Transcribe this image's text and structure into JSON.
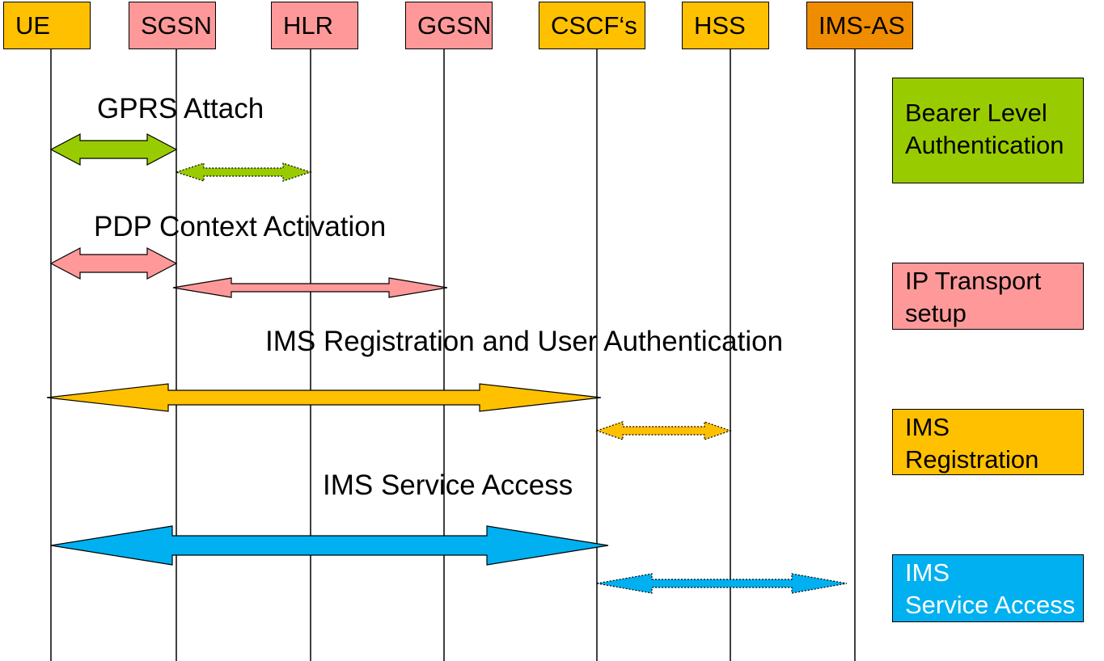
{
  "entities": [
    {
      "id": "ue",
      "name": "UE",
      "color": "#FFC000"
    },
    {
      "id": "sgsn",
      "name": "SGSN",
      "color": "#FF9999"
    },
    {
      "id": "hlr",
      "name": "HLR",
      "color": "#FF9999"
    },
    {
      "id": "ggsn",
      "name": "GGSN",
      "color": "#FF9999"
    },
    {
      "id": "cscf",
      "name": "CSCF‘s",
      "color": "#FFC000"
    },
    {
      "id": "hss",
      "name": "HSS",
      "color": "#FFC000"
    },
    {
      "id": "ims-as",
      "name": "IMS-AS",
      "color": "#F08C00"
    }
  ],
  "phases": [
    {
      "title": "GPRS Attach",
      "color": "#99CC00"
    },
    {
      "title": "PDP Context Activation",
      "color": "#FF9999"
    },
    {
      "title": "IMS Registration and User Authentication",
      "color": "#FFC000"
    },
    {
      "title": "IMS Service Access",
      "color": "#00B0F0"
    }
  ],
  "legend": [
    {
      "line1": "Bearer Level",
      "line2": "Authentication",
      "color": "#99CC00",
      "text_color": "#000000"
    },
    {
      "line1": "IP Transport",
      "line2": "setup",
      "color": "#FF9999",
      "text_color": "#000000"
    },
    {
      "line1": "IMS",
      "line2": "Registration",
      "color": "#FFC000",
      "text_color": "#000000"
    },
    {
      "line1": "IMS",
      "line2": "Service Access",
      "color": "#00B0F0",
      "text_color": "#FFFFFF"
    }
  ],
  "arrows": [
    {
      "from": "ue",
      "to": "sgsn",
      "phase": 0,
      "style": "solid"
    },
    {
      "from": "sgsn",
      "to": "hlr",
      "phase": 0,
      "style": "dotted"
    },
    {
      "from": "ue",
      "to": "sgsn",
      "phase": 1,
      "style": "solid"
    },
    {
      "from": "sgsn",
      "to": "ggsn",
      "phase": 1,
      "style": "solid"
    },
    {
      "from": "ue",
      "to": "cscf",
      "phase": 2,
      "style": "solid"
    },
    {
      "from": "cscf",
      "to": "hss",
      "phase": 2,
      "style": "dotted"
    },
    {
      "from": "ue",
      "to": "cscf",
      "phase": 3,
      "style": "solid"
    },
    {
      "from": "cscf",
      "to": "ims-as",
      "phase": 3,
      "style": "dotted"
    }
  ]
}
